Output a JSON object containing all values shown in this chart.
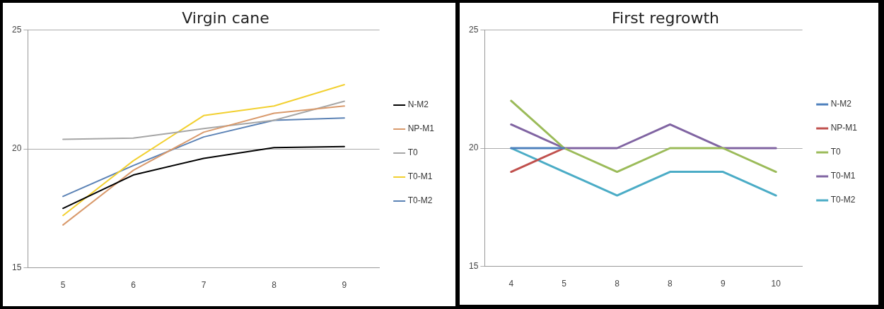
{
  "chart_data": [
    {
      "type": "line",
      "title": "Virgin cane",
      "categories": [
        "5",
        "6",
        "7",
        "8",
        "9"
      ],
      "ylim": [
        15,
        25
      ],
      "yticks": [
        15,
        20,
        25
      ],
      "grid": "y",
      "legend": "right",
      "marker": "none",
      "series": [
        {
          "name": "N-M2",
          "color": "#000000",
          "values": [
            17.5,
            18.9,
            19.6,
            20.05,
            20.1
          ]
        },
        {
          "name": "NP-M1",
          "color": "#d99a6c",
          "values": [
            16.8,
            19.1,
            20.7,
            21.5,
            21.8
          ]
        },
        {
          "name": "T0",
          "color": "#a6a6a6",
          "values": [
            20.4,
            20.45,
            20.85,
            21.2,
            22.0
          ]
        },
        {
          "name": "T0-M1",
          "color": "#f2d030",
          "values": [
            17.2,
            19.5,
            21.4,
            21.8,
            22.7
          ]
        },
        {
          "name": "T0-M2",
          "color": "#5b82b5",
          "values": [
            18.0,
            19.3,
            20.5,
            21.2,
            21.3
          ]
        }
      ]
    },
    {
      "type": "line",
      "title": "First regrowth",
      "categories": [
        "4",
        "5",
        "8",
        "8",
        "9",
        "10"
      ],
      "ylim": [
        15,
        25
      ],
      "yticks": [
        15,
        20,
        25
      ],
      "grid": "y",
      "legend": "right",
      "marker": "none",
      "series": [
        {
          "name": "N-M2",
          "color": "#4f81bd",
          "values": [
            20,
            20,
            null,
            null,
            null,
            null
          ]
        },
        {
          "name": "NP-M1",
          "color": "#c0504d",
          "values": [
            19,
            20,
            null,
            null,
            null,
            null
          ]
        },
        {
          "name": "T0",
          "color": "#9bbb59",
          "values": [
            22,
            20,
            19,
            20,
            20,
            19
          ]
        },
        {
          "name": "T0-M1",
          "color": "#8064a2",
          "values": [
            21,
            20,
            20,
            21,
            20,
            20
          ]
        },
        {
          "name": "T0-M2",
          "color": "#4bacc6",
          "values": [
            20,
            19,
            18,
            19,
            19,
            18
          ]
        }
      ]
    }
  ]
}
